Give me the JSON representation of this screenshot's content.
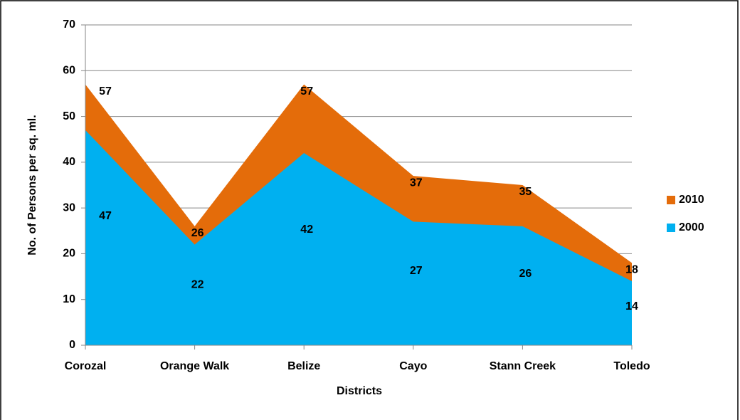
{
  "chart_data": {
    "type": "area",
    "x_label": "Districts",
    "y_label": "No. of Persons per sq. ml.",
    "categories": [
      "Corozal",
      "Orange Walk",
      "Belize",
      "Cayo",
      "Stann Creek",
      "Toledo"
    ],
    "series": [
      {
        "name": "2010",
        "color": "#e46c0a",
        "values": [
          57,
          26,
          57,
          37,
          35,
          18
        ]
      },
      {
        "name": "2000",
        "color": "#00b0f0",
        "values": [
          47,
          22,
          42,
          27,
          26,
          14
        ]
      }
    ],
    "ylim": [
      0,
      70
    ],
    "yticks": [
      0,
      10,
      20,
      30,
      40,
      50,
      60,
      70
    ],
    "grid": true,
    "legend": "right"
  }
}
